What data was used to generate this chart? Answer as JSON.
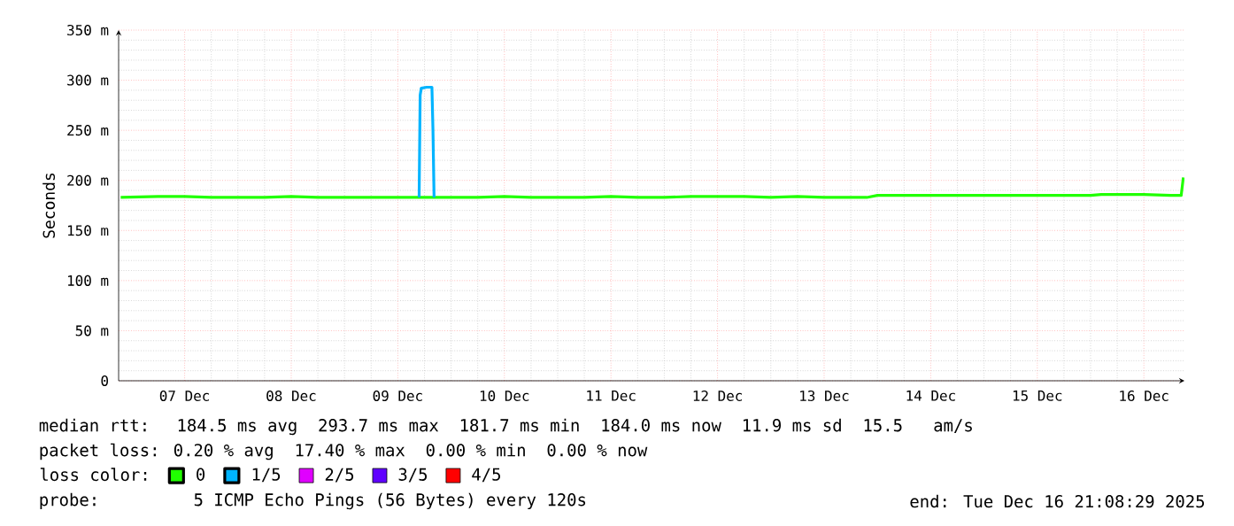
{
  "chart_data": {
    "type": "line",
    "ylabel": "Seconds",
    "legend_title": "loss color:",
    "legend": "bottom",
    "grid": true,
    "marker": "none",
    "line_style": "solid",
    "xlim": [
      "2025-12-06T21:08",
      "2025-12-16T21:08"
    ],
    "ylim": [
      0,
      350
    ],
    "xticks": [
      {
        "value": "2025-12-07T12:00",
        "label": "07 Dec"
      },
      {
        "value": "2025-12-08T12:00",
        "label": "08 Dec"
      },
      {
        "value": "2025-12-09T12:00",
        "label": "09 Dec"
      },
      {
        "value": "2025-12-10T12:00",
        "label": "10 Dec"
      },
      {
        "value": "2025-12-11T12:00",
        "label": "11 Dec"
      },
      {
        "value": "2025-12-12T12:00",
        "label": "12 Dec"
      },
      {
        "value": "2025-12-13T12:00",
        "label": "13 Dec"
      },
      {
        "value": "2025-12-14T12:00",
        "label": "14 Dec"
      },
      {
        "value": "2025-12-15T12:00",
        "label": "15 Dec"
      },
      {
        "value": "2025-12-16T12:00",
        "label": "16 Dec"
      }
    ],
    "yticks": [
      0,
      {
        "value": 50,
        "label": "50 m"
      },
      {
        "value": 100,
        "label": "100 m"
      },
      {
        "value": 150,
        "label": "150 m"
      },
      {
        "value": 200,
        "label": "200 m"
      },
      {
        "value": 250,
        "label": "250 m"
      },
      {
        "value": 300,
        "label": "300 m"
      },
      {
        "value": 350,
        "label": "350 m"
      }
    ],
    "series": [
      {
        "name": "0",
        "color": "#20ff00",
        "x": [
          "2025-12-06T21:36",
          "2025-12-07T06:00",
          "2025-12-07T12:00",
          "2025-12-07T18:00",
          "2025-12-08T00:00",
          "2025-12-08T06:00",
          "2025-12-08T12:00",
          "2025-12-08T18:00",
          "2025-12-09T00:00",
          "2025-12-09T06:00",
          "2025-12-09T12:00",
          "2025-12-09T16:19",
          "2025-12-09T20:24",
          "2025-12-10T00:00",
          "2025-12-10T06:00",
          "2025-12-10T12:00",
          "2025-12-10T18:00",
          "2025-12-11T00:00",
          "2025-12-11T06:00",
          "2025-12-11T12:00",
          "2025-12-11T18:00",
          "2025-12-12T00:00",
          "2025-12-12T06:00",
          "2025-12-12T12:00",
          "2025-12-12T18:00",
          "2025-12-13T00:00",
          "2025-12-13T06:00",
          "2025-12-13T12:00",
          "2025-12-13T18:00",
          "2025-12-13T21:36",
          "2025-12-14T00:00",
          "2025-12-14T06:00",
          "2025-12-14T12:00",
          "2025-12-14T18:00",
          "2025-12-15T00:00",
          "2025-12-15T06:00",
          "2025-12-15T12:00",
          "2025-12-15T18:00",
          "2025-12-16T00:00",
          "2025-12-16T02:24",
          "2025-12-16T06:00",
          "2025-12-16T12:00",
          "2025-12-16T18:00",
          "2025-12-16T20:24",
          "2025-12-16T20:53"
        ],
        "values": [
          183,
          184,
          184,
          183,
          183,
          183,
          184,
          183,
          183,
          183,
          183,
          183,
          183,
          183,
          183,
          184,
          183,
          183,
          183,
          184,
          183,
          183,
          184,
          184,
          184,
          183,
          184,
          183,
          183,
          183,
          185,
          185,
          185,
          185,
          185,
          185,
          185,
          185,
          185,
          186,
          186,
          186,
          185,
          185,
          203
        ]
      },
      {
        "name": "1/5",
        "color": "#00b4ff",
        "x": [
          "2025-12-09T16:48",
          "2025-12-09T17:02",
          "2025-12-09T17:17",
          "2025-12-09T18:29",
          "2025-12-09T19:41",
          "2025-12-09T19:55",
          "2025-12-09T20:10"
        ],
        "values": [
          183,
          285,
          292,
          293,
          293,
          250,
          183
        ]
      },
      {
        "name": "2/5",
        "color": "#e000ff"
      },
      {
        "name": "3/5",
        "color": "#6000ff"
      },
      {
        "name": "4/5",
        "color": "#ff0000"
      }
    ],
    "annotations": [
      "median rtt:  184.5 ms avg  293.7 ms max  181.7 ms min  184.0 ms now  11.9 ms sd  15.5   am/s",
      "packet loss: 0.20 % avg  17.40 % max  0.00 % min  0.00 % now",
      "probe:       5 ICMP Echo Pings (56 Bytes) every 120s",
      "end: Tue Dec 16 21:08:29 2025"
    ]
  }
}
